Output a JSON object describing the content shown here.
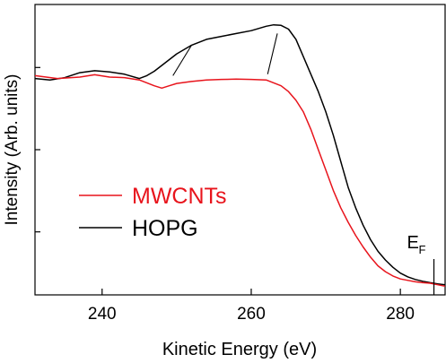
{
  "chart_data": {
    "type": "line",
    "xlabel": "Kinetic Energy (eV)",
    "ylabel": "Intensity (Arb. units)",
    "xlim": [
      231,
      286
    ],
    "ylim": [
      0,
      1
    ],
    "xticks": [
      240,
      260,
      280
    ],
    "yticks_labeled": false,
    "grid": false,
    "legend_position": "center-left",
    "fermi_label": "E",
    "fermi_subscript": "F",
    "fermi_x": 284.5,
    "series": [
      {
        "name": "MWCNTs",
        "color": "#e8141c",
        "x": [
          231,
          234,
          237,
          239,
          241,
          243,
          245,
          247,
          248,
          249,
          250,
          252,
          254,
          256,
          258,
          260,
          262,
          264,
          265,
          266,
          267,
          268,
          269,
          270,
          271,
          272,
          273,
          274,
          275,
          276,
          277,
          278,
          279,
          280,
          281,
          282,
          283,
          284,
          285,
          286
        ],
        "y": [
          0.755,
          0.745,
          0.75,
          0.758,
          0.75,
          0.748,
          0.74,
          0.72,
          0.712,
          0.72,
          0.728,
          0.735,
          0.74,
          0.742,
          0.743,
          0.742,
          0.74,
          0.72,
          0.7,
          0.67,
          0.63,
          0.57,
          0.5,
          0.43,
          0.36,
          0.3,
          0.25,
          0.205,
          0.165,
          0.13,
          0.1,
          0.08,
          0.065,
          0.055,
          0.05,
          0.045,
          0.042,
          0.04,
          0.035,
          0.03
        ]
      },
      {
        "name": "HOPG",
        "color": "#000000",
        "x": [
          231,
          233,
          235,
          237,
          239,
          241,
          243,
          245,
          246,
          247,
          248,
          250,
          252,
          254,
          256,
          258,
          260,
          262,
          263,
          264,
          265,
          266,
          267,
          268,
          269,
          270,
          271,
          272,
          273,
          274,
          275,
          276,
          277,
          278,
          279,
          280,
          281,
          282,
          283,
          284,
          285,
          286
        ],
        "y": [
          0.745,
          0.74,
          0.748,
          0.765,
          0.772,
          0.768,
          0.76,
          0.745,
          0.755,
          0.77,
          0.79,
          0.83,
          0.86,
          0.88,
          0.89,
          0.9,
          0.91,
          0.925,
          0.93,
          0.928,
          0.915,
          0.88,
          0.82,
          0.76,
          0.7,
          0.63,
          0.55,
          0.46,
          0.37,
          0.3,
          0.24,
          0.19,
          0.15,
          0.12,
          0.095,
          0.075,
          0.062,
          0.053,
          0.047,
          0.042,
          0.038,
          0.035
        ]
      }
    ],
    "guide_lines": [
      {
        "x1": 249.5,
        "y1": 0.755,
        "x2": 252,
        "y2": 0.86
      },
      {
        "x1": 262.2,
        "y1": 0.76,
        "x2": 263.5,
        "y2": 0.9
      }
    ]
  }
}
